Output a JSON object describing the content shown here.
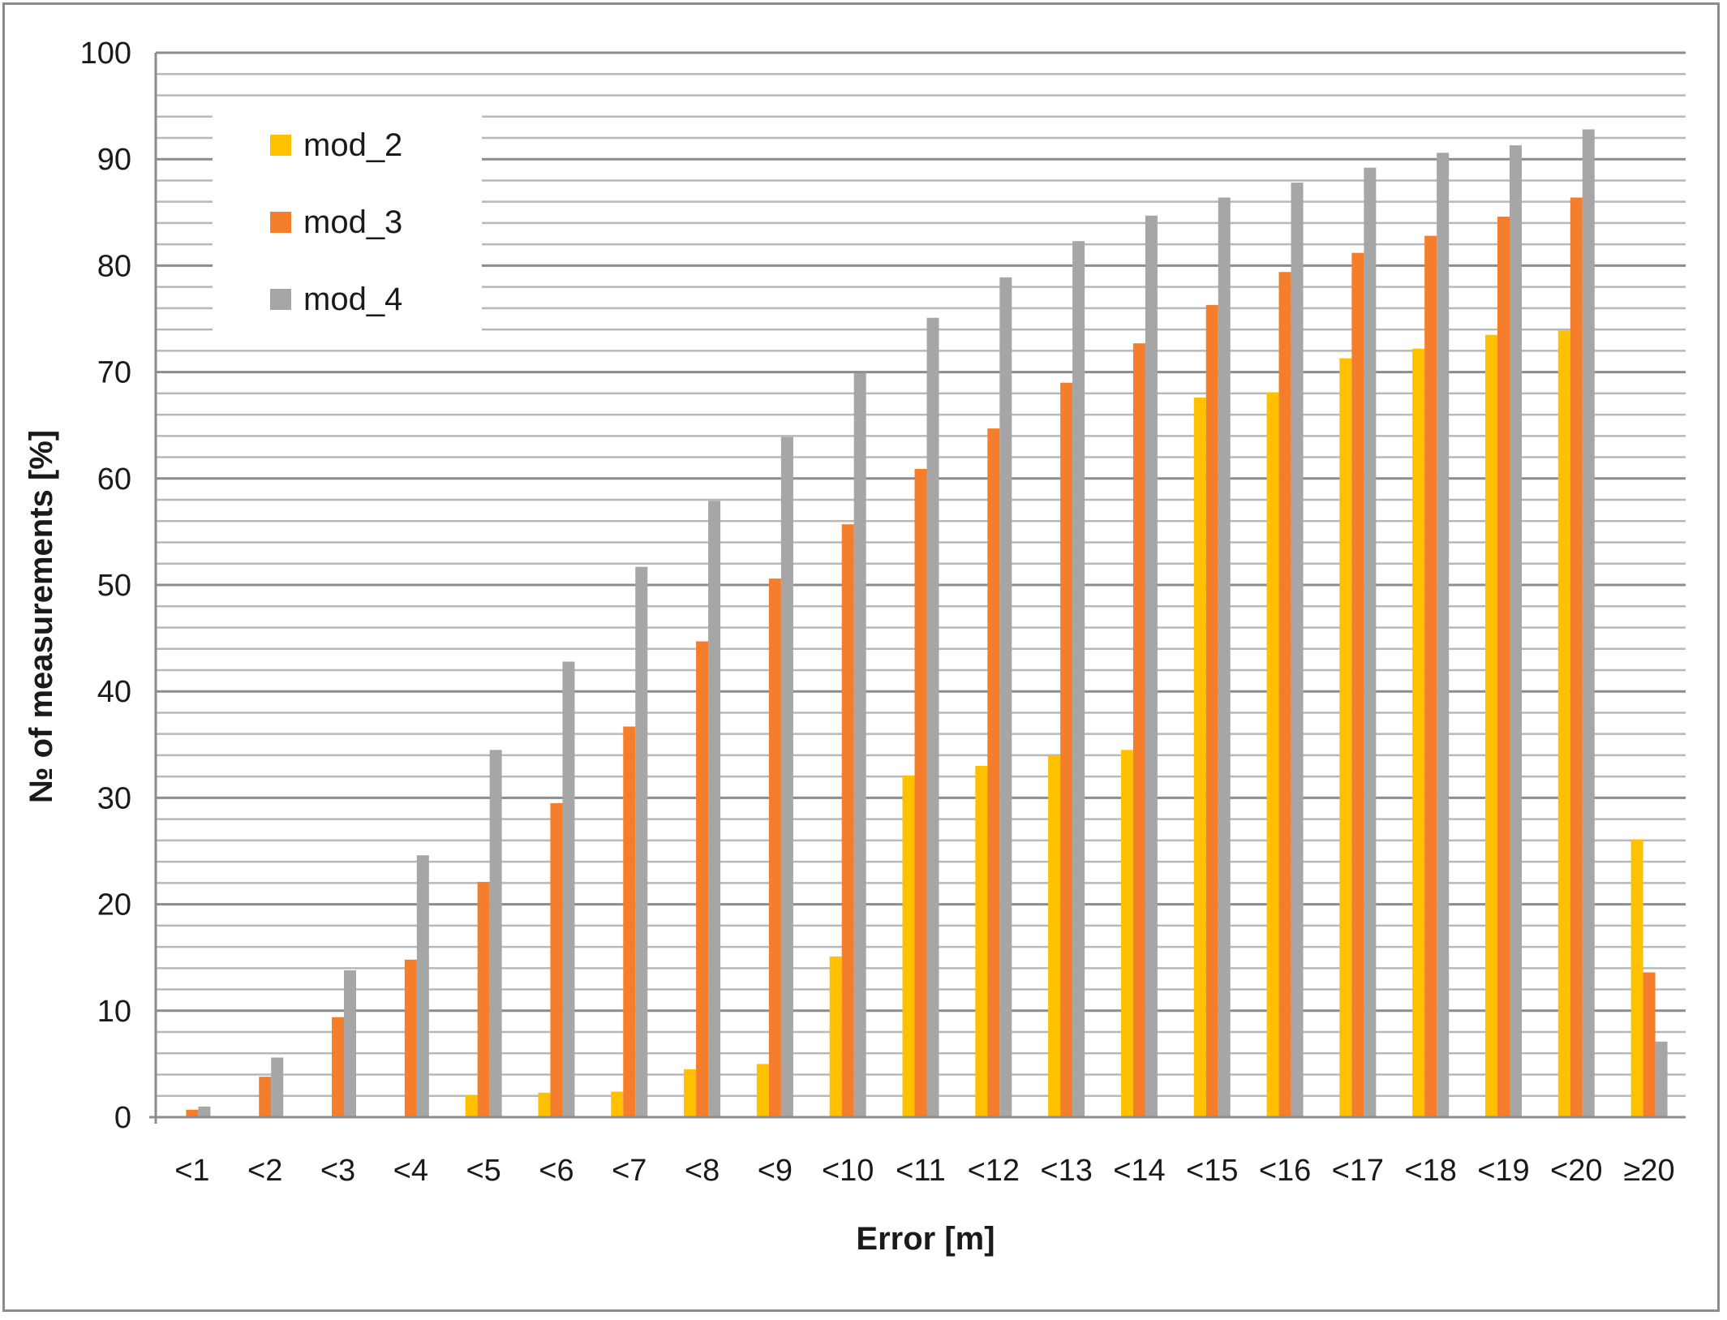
{
  "chart_data": {
    "type": "bar",
    "title": "",
    "xlabel": "Error [m]",
    "ylabel": "№ of measurements [%]",
    "ylim": [
      0,
      100
    ],
    "y_ticks": [
      "0",
      "10",
      "20",
      "30",
      "40",
      "50",
      "60",
      "70",
      "80",
      "90",
      "100"
    ],
    "grid": true,
    "legend_position": "top-left",
    "categories": [
      "<1",
      "<2",
      "<3",
      "<4",
      "<5",
      "<6",
      "<7",
      "<8",
      "<9",
      "<10",
      "<11",
      "<12",
      "<13",
      "<14",
      "<15",
      "<16",
      "<17",
      "<18",
      "<19",
      "<20",
      "≥20"
    ],
    "series": [
      {
        "name": "mod_2",
        "color": "#FFC000",
        "values": [
          0,
          0,
          0,
          0,
          2.1,
          2.3,
          2.4,
          4.5,
          5.0,
          15.1,
          32.1,
          33.0,
          34.0,
          34.5,
          67.6,
          68.1,
          71.3,
          72.2,
          73.5,
          73.9,
          26.1
        ]
      },
      {
        "name": "mod_3",
        "color": "#F47E2B",
        "values": [
          0.7,
          3.8,
          9.4,
          14.8,
          22.1,
          29.5,
          36.7,
          44.7,
          50.6,
          55.7,
          60.9,
          64.7,
          69.0,
          72.7,
          76.3,
          79.4,
          81.2,
          82.8,
          84.6,
          86.4,
          13.6
        ]
      },
      {
        "name": "mod_4",
        "color": "#A6A6A6",
        "values": [
          1.0,
          5.6,
          13.8,
          24.6,
          34.5,
          42.8,
          51.7,
          57.9,
          63.9,
          69.9,
          75.1,
          78.9,
          82.3,
          84.7,
          86.4,
          87.8,
          89.2,
          90.6,
          91.3,
          92.8,
          7.1
        ]
      }
    ]
  }
}
